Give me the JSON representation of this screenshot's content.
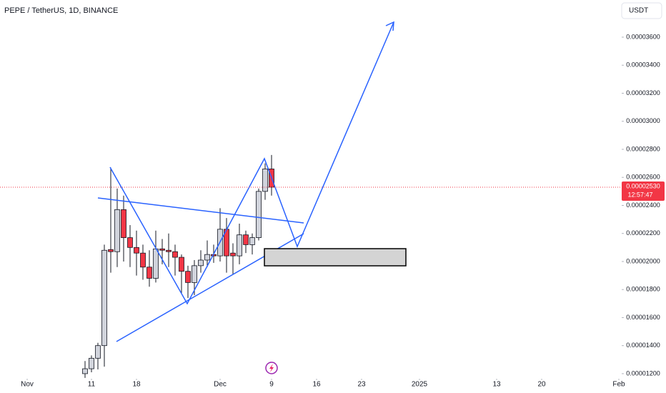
{
  "chart_data": {
    "type": "candlestick",
    "title": "PEPE / TetherUS, 1D, BINANCE",
    "currency": "USDT",
    "x": [
      "Nov 10",
      "Nov 11",
      "Nov 12",
      "Nov 13",
      "Nov 14",
      "Nov 15",
      "Nov 16",
      "Nov 17",
      "Nov 18",
      "Nov 19",
      "Nov 20",
      "Nov 21",
      "Nov 22",
      "Nov 23",
      "Nov 24",
      "Nov 25",
      "Nov 26",
      "Nov 27",
      "Nov 28",
      "Nov 29",
      "Nov 30",
      "Dec 1",
      "Dec 2",
      "Dec 3",
      "Dec 4",
      "Dec 5",
      "Dec 6",
      "Dec 7",
      "Dec 8",
      "Dec 9"
    ],
    "open": [
      1.2e-05,
      1.235e-05,
      1.31e-05,
      1.4e-05,
      2.085e-05,
      2.07e-05,
      2.37e-05,
      2.17e-05,
      2.1e-05,
      2.06e-05,
      1.96e-05,
      1.88e-05,
      2.09e-05,
      2.08e-05,
      2.07e-05,
      2.03e-05,
      1.93e-05,
      1.85e-05,
      1.97e-05,
      2.01e-05,
      2.05e-05,
      2.04e-05,
      2.23e-05,
      2.06e-05,
      2.04e-05,
      2.19e-05,
      2.12e-05,
      2.17e-05,
      2.5e-05,
      2.66e-05
    ],
    "high": [
      1.29e-05,
      1.33e-05,
      1.42e-05,
      2.12e-05,
      2.67e-05,
      2.52e-05,
      2.47e-05,
      2.26e-05,
      2.22e-05,
      2.12e-05,
      2.08e-05,
      2.22e-05,
      2.16e-05,
      2.2e-05,
      2.12e-05,
      2.05e-05,
      1.97e-05,
      2.01e-05,
      2.08e-05,
      2.15e-05,
      2.12e-05,
      2.38e-05,
      2.31e-05,
      2.13e-05,
      2.27e-05,
      2.22e-05,
      2.2e-05,
      2.52e-05,
      2.7e-05,
      2.76e-05
    ],
    "low": [
      1.17e-05,
      1.21e-05,
      1.23e-05,
      1.25e-05,
      1.92e-05,
      1.96e-05,
      2e-05,
      1.96e-05,
      1.9e-05,
      1.87e-05,
      1.82e-05,
      1.85e-05,
      1.98e-05,
      1.96e-05,
      1.9e-05,
      1.77e-05,
      1.74e-05,
      1.76e-05,
      1.92e-05,
      1.96e-05,
      1.99e-05,
      2e-05,
      1.92e-05,
      1.91e-05,
      1.98e-05,
      2.06e-05,
      2.05e-05,
      2.15e-05,
      2.44e-05,
      2.47e-05
    ],
    "close": [
      1.235e-05,
      1.31e-05,
      1.4e-05,
      2.08e-05,
      2.07e-05,
      2.37e-05,
      2.17e-05,
      2.1e-05,
      2.06e-05,
      1.96e-05,
      1.88e-05,
      2.09e-05,
      2.08e-05,
      2.07e-05,
      2.03e-05,
      1.93e-05,
      1.85e-05,
      1.97e-05,
      2.01e-05,
      2.05e-05,
      2.04e-05,
      2.23e-05,
      2.04e-05,
      2.04e-05,
      2.19e-05,
      2.12e-05,
      2.17e-05,
      2.5e-05,
      2.66e-05,
      2.53e-05
    ],
    "up_color": "#d1d4dc",
    "down_color": "#f23645",
    "ylim": [
      1.164e-05,
      3.865e-05
    ],
    "yticks": [
      {
        "value": 1.2e-05,
        "label": "0.00001200"
      },
      {
        "value": 1.4e-05,
        "label": "0.00001400"
      },
      {
        "value": 1.6e-05,
        "label": "0.00001600"
      },
      {
        "value": 1.8e-05,
        "label": "0.00001800"
      },
      {
        "value": 2e-05,
        "label": "0.00002000"
      },
      {
        "value": 2.2e-05,
        "label": "0.00002200"
      },
      {
        "value": 2.4e-05,
        "label": "0.00002400"
      },
      {
        "value": 2.6e-05,
        "label": "0.00002600"
      },
      {
        "value": 2.8e-05,
        "label": "0.00002800"
      },
      {
        "value": 3e-05,
        "label": "0.00003000"
      },
      {
        "value": 3.2e-05,
        "label": "0.00003200"
      },
      {
        "value": 3.4e-05,
        "label": "0.00003400"
      },
      {
        "value": 3.6e-05,
        "label": "0.00003600"
      }
    ],
    "xticks": [
      {
        "value": "Nov 1",
        "label": "Nov"
      },
      {
        "value": "Nov 11",
        "label": "11"
      },
      {
        "value": "Nov 18",
        "label": "18"
      },
      {
        "value": "Dec 1",
        "label": "Dec"
      },
      {
        "value": "Dec 9",
        "label": "9"
      },
      {
        "value": "Dec 16",
        "label": "16"
      },
      {
        "value": "Dec 23",
        "label": "23"
      },
      {
        "value": "Jan 1",
        "label": "2025"
      },
      {
        "value": "Jan 13",
        "label": "13"
      },
      {
        "value": "Jan 20",
        "label": "20"
      },
      {
        "value": "Feb 1",
        "label": "Feb"
      }
    ],
    "last_price": {
      "value": 2.53e-05,
      "label": "0.00002530"
    },
    "countdown": "12:57:47",
    "last_price_color": "#f23645"
  }
}
